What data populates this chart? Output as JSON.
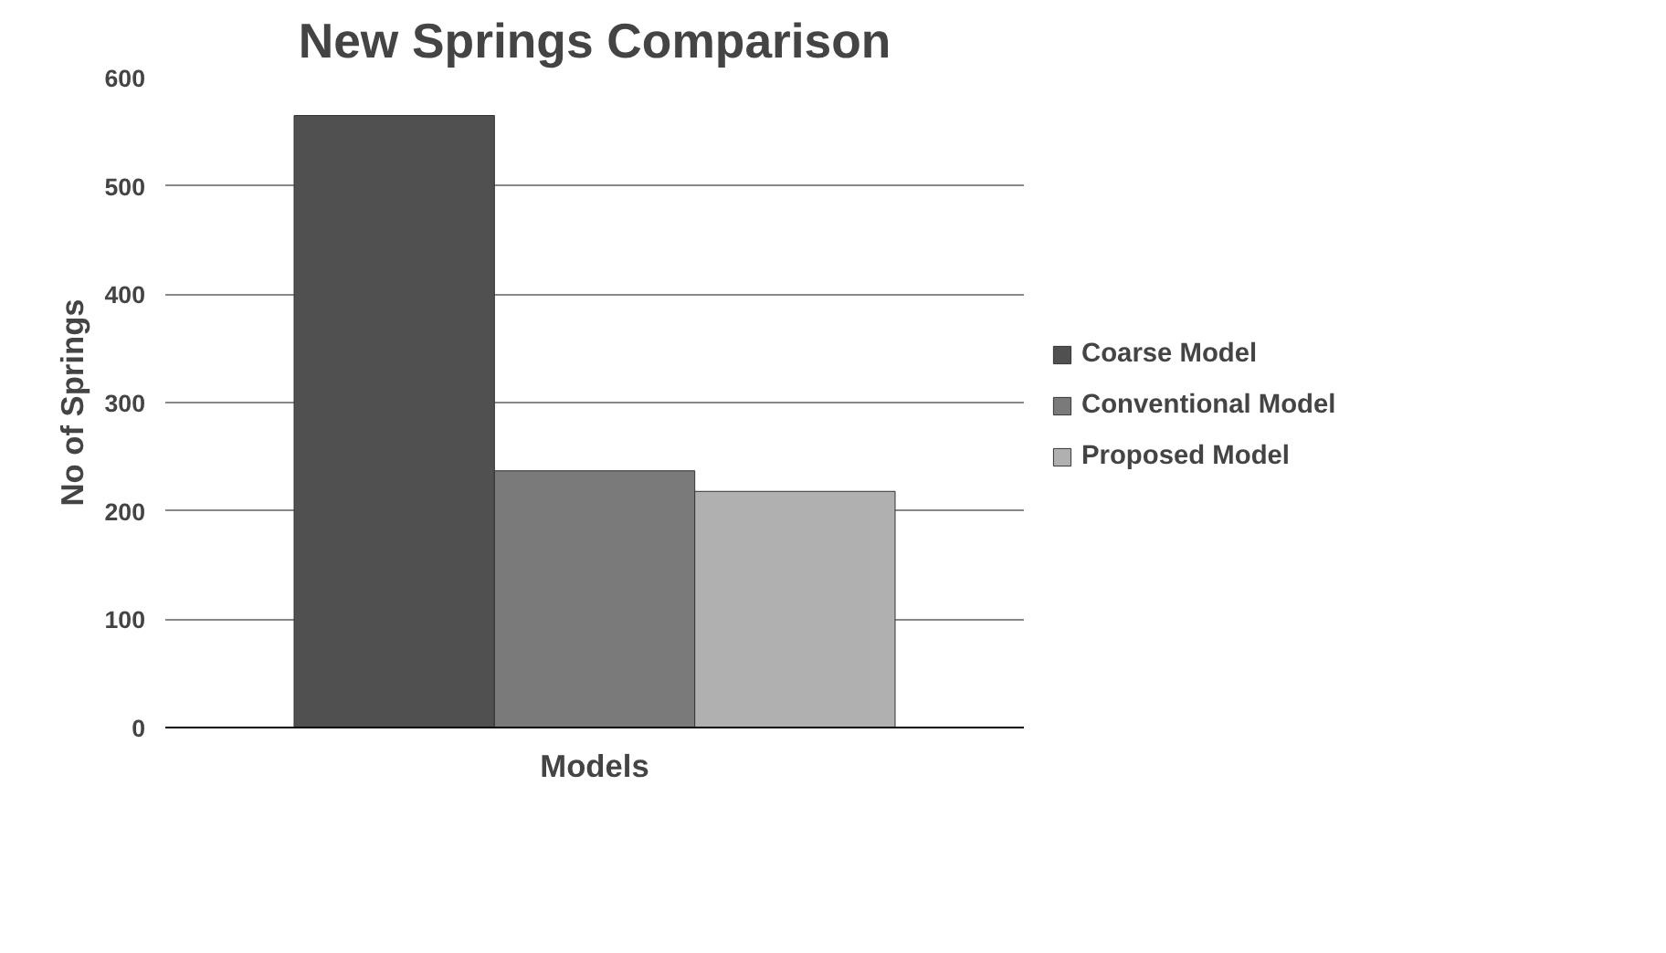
{
  "chart_data": {
    "type": "bar",
    "title": "New Springs Comparison",
    "xlabel": "Models",
    "ylabel": "No of Springs",
    "categories": [
      null
    ],
    "series": [
      {
        "name": "Coarse Model",
        "color": "#505050",
        "values": [
          565
        ]
      },
      {
        "name": "Conventional Model",
        "color": "#7a7a7a",
        "values": [
          237
        ]
      },
      {
        "name": "Proposed Model",
        "color": "#b0b0b0",
        "values": [
          218
        ]
      }
    ],
    "ylim": [
      0,
      600
    ],
    "yticks": [
      0,
      100,
      200,
      300,
      400,
      500,
      600
    ],
    "grid": "y",
    "legend": "right"
  }
}
